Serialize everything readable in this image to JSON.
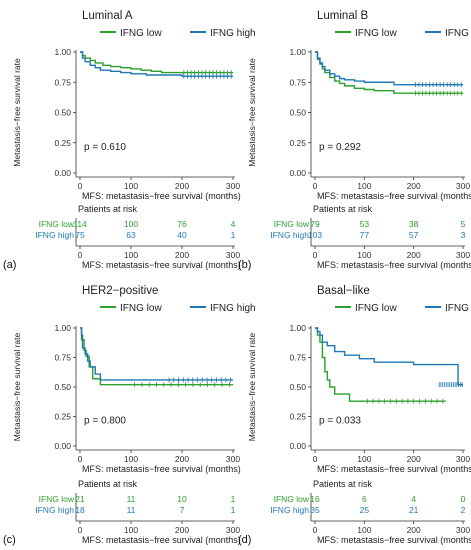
{
  "colors": {
    "low": "#2ca02c",
    "high": "#1f78b4",
    "axis": "#333333",
    "grid": "#cccccc"
  },
  "chart_data": [
    {
      "type": "line",
      "panel_letter": "(a)",
      "title": "Luminal A",
      "xlabel": "MFS: metastasis−free survival (months)",
      "ylabel": "Metastasis−free survival rate",
      "xlim": [
        0,
        300
      ],
      "ylim": [
        0,
        1
      ],
      "xticks": [
        "0",
        "100",
        "200",
        "300"
      ],
      "yticks": [
        "0.00",
        "0.25",
        "0.50",
        "0.75",
        "1.00"
      ],
      "legend_position": "top",
      "pvalue": "p = 0.610",
      "risk_table_title": "Patients at risk",
      "series": [
        {
          "name": "IFNG low",
          "key": "low",
          "x": [
            0,
            5,
            10,
            20,
            30,
            45,
            60,
            80,
            100,
            120,
            140,
            160,
            200,
            250,
            300
          ],
          "y": [
            1.0,
            0.97,
            0.95,
            0.93,
            0.91,
            0.89,
            0.88,
            0.87,
            0.86,
            0.85,
            0.84,
            0.83,
            0.83,
            0.83,
            0.83
          ],
          "risk": [
            "114",
            "100",
            "76",
            "4"
          ]
        },
        {
          "name": "IFNG high",
          "key": "high",
          "x": [
            0,
            5,
            10,
            20,
            30,
            40,
            60,
            80,
            100,
            130,
            160,
            200,
            250,
            300
          ],
          "y": [
            1.0,
            0.95,
            0.92,
            0.89,
            0.87,
            0.85,
            0.84,
            0.83,
            0.82,
            0.81,
            0.81,
            0.8,
            0.8,
            0.8
          ],
          "risk": [
            "75",
            "63",
            "40",
            "1"
          ]
        }
      ]
    },
    {
      "type": "line",
      "panel_letter": "(b)",
      "title": "Luminal B",
      "xlabel": "MFS: metastasis−free survival (months)",
      "ylabel": "Metastasis−free survival rate",
      "xlim": [
        0,
        300
      ],
      "ylim": [
        0,
        1
      ],
      "xticks": [
        "0",
        "100",
        "200",
        "300"
      ],
      "yticks": [
        "0.00",
        "0.25",
        "0.50",
        "0.75",
        "1.00"
      ],
      "legend_position": "top",
      "pvalue": "p = 0.292",
      "risk_table_title": "Patients at risk",
      "series": [
        {
          "name": "IFNG low",
          "key": "low",
          "x": [
            0,
            5,
            10,
            15,
            20,
            30,
            40,
            50,
            60,
            80,
            100,
            120,
            150,
            160,
            200,
            250,
            300
          ],
          "y": [
            1.0,
            0.94,
            0.9,
            0.86,
            0.83,
            0.79,
            0.76,
            0.74,
            0.72,
            0.7,
            0.69,
            0.68,
            0.68,
            0.66,
            0.66,
            0.66,
            0.66
          ],
          "risk": [
            "79",
            "53",
            "38",
            "5"
          ]
        },
        {
          "name": "IFNG high",
          "key": "high",
          "x": [
            0,
            5,
            10,
            15,
            20,
            30,
            40,
            50,
            60,
            80,
            100,
            130,
            160,
            200,
            250,
            300
          ],
          "y": [
            1.0,
            0.95,
            0.91,
            0.88,
            0.85,
            0.82,
            0.8,
            0.78,
            0.77,
            0.76,
            0.75,
            0.75,
            0.73,
            0.73,
            0.73,
            0.73
          ],
          "risk": [
            "103",
            "77",
            "57",
            "3"
          ]
        }
      ]
    },
    {
      "type": "line",
      "panel_letter": "(c)",
      "title": "HER2−positive",
      "xlabel": "MFS: metastasis−free survival (months)",
      "ylabel": "Metastasis−free survival rate",
      "xlim": [
        0,
        300
      ],
      "ylim": [
        0,
        1
      ],
      "xticks": [
        "0",
        "100",
        "200",
        "300"
      ],
      "yticks": [
        "0.00",
        "0.25",
        "0.50",
        "0.75",
        "1.00"
      ],
      "legend_position": "top",
      "pvalue": "p = 0.800",
      "risk_table_title": "Patients at risk",
      "series": [
        {
          "name": "IFNG low",
          "key": "low",
          "x": [
            0,
            3,
            8,
            12,
            18,
            25,
            40,
            100,
            200,
            300
          ],
          "y": [
            1.0,
            0.9,
            0.81,
            0.76,
            0.67,
            0.57,
            0.52,
            0.52,
            0.52,
            0.52
          ],
          "risk": [
            "21",
            "11",
            "10",
            "1"
          ]
        },
        {
          "name": "IFNG high",
          "key": "high",
          "x": [
            0,
            3,
            5,
            10,
            15,
            20,
            30,
            40,
            100,
            170,
            200,
            300
          ],
          "y": [
            1.0,
            0.94,
            0.83,
            0.78,
            0.72,
            0.67,
            0.61,
            0.56,
            0.56,
            0.56,
            0.56,
            0.56
          ],
          "risk": [
            "18",
            "11",
            "7",
            "1"
          ]
        }
      ]
    },
    {
      "type": "line",
      "panel_letter": "(d)",
      "title": "Basal−like",
      "xlabel": "MFS: metastasis−free survival (months)",
      "ylabel": "Metastasis−free survival rate",
      "xlim": [
        0,
        300
      ],
      "ylim": [
        0,
        1
      ],
      "xticks": [
        "0",
        "100",
        "200",
        "300"
      ],
      "yticks": [
        "0.00",
        "0.25",
        "0.50",
        "0.75",
        "1.00"
      ],
      "legend_position": "top",
      "pvalue": "p = 0.033",
      "risk_table_title": "Patients at risk",
      "series": [
        {
          "name": "IFNG low",
          "key": "low",
          "x": [
            0,
            5,
            10,
            15,
            20,
            25,
            30,
            40,
            70,
            100,
            200,
            265
          ],
          "y": [
            1.0,
            0.94,
            0.88,
            0.75,
            0.63,
            0.56,
            0.5,
            0.44,
            0.38,
            0.38,
            0.38,
            0.38
          ],
          "risk": [
            "16",
            "6",
            "4",
            "0"
          ]
        },
        {
          "name": "IFNG high",
          "key": "high",
          "x": [
            0,
            5,
            10,
            15,
            25,
            40,
            60,
            90,
            120,
            200,
            250,
            290,
            300
          ],
          "y": [
            1.0,
            0.97,
            0.94,
            0.88,
            0.85,
            0.8,
            0.77,
            0.74,
            0.71,
            0.69,
            0.69,
            0.52,
            0.52
          ],
          "risk": [
            "35",
            "25",
            "21",
            "2"
          ]
        }
      ]
    }
  ]
}
